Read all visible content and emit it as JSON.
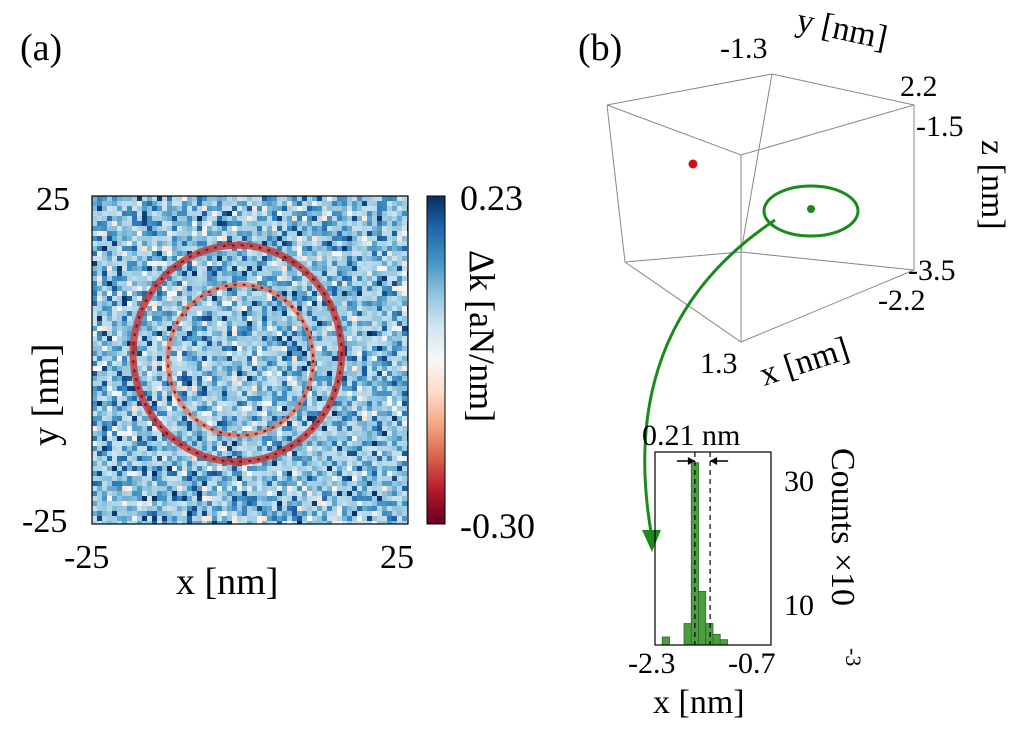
{
  "panels": {
    "a": {
      "label": "(a)"
    },
    "b": {
      "label": "(b)"
    }
  },
  "chart_data": [
    {
      "type": "heatmap",
      "panel": "a",
      "xlabel": "x [nm]",
      "ylabel": "y [nm]",
      "xlim": [
        -25,
        25
      ],
      "ylim": [
        -25,
        25
      ],
      "x_ticks": [
        "-25",
        "25"
      ],
      "y_ticks": [
        "25",
        "-25"
      ],
      "colorbar": {
        "label": "Δk [aN/nm]",
        "min": -0.3,
        "max": 0.23,
        "min_label": "-0.30",
        "max_label": "0.23",
        "colors": [
          "#67001f",
          "#b2182b",
          "#d6604d",
          "#f4a582",
          "#fddbc7",
          "#f7f7f7",
          "#d1e5f0",
          "#92c5de",
          "#4393c3",
          "#2166ac",
          "#053061"
        ]
      },
      "features": {
        "rings": [
          {
            "center": [
              -2,
              1
            ],
            "radius": 16.5,
            "value": -0.22
          },
          {
            "center": [
              -1.5,
              0
            ],
            "radius": 11.5,
            "value": -0.17
          }
        ],
        "background": "noise"
      }
    },
    {
      "type": "scatter",
      "panel": "b",
      "projection": "3d",
      "xlabel": "x [nm]",
      "ylabel": "y [nm]",
      "zlabel": "z [nm]",
      "x_ticks": [
        "1.3",
        "-2.2"
      ],
      "y_ticks": [
        "-1.3",
        "2.2"
      ],
      "z_ticks": [
        "-1.5",
        "-3.5"
      ],
      "points": [
        {
          "x": -0.2,
          "y": -1.1,
          "z": -2.2,
          "color": "#cc1111"
        },
        {
          "x": -1.2,
          "y": 1.3,
          "z": -2.5,
          "color": "#1a8a1a"
        }
      ],
      "highlight_color": "#1a8a1a"
    },
    {
      "type": "bar",
      "panel": "b-inset",
      "xlabel": "x [nm]",
      "ylabel": "Counts ×10",
      "ylabel_exponent": "-3",
      "xlim": [
        -2.3,
        -0.7
      ],
      "ylim": [
        0,
        36
      ],
      "x_ticks": [
        "-2.3",
        "-0.7"
      ],
      "y_ticks": [
        "30",
        "10"
      ],
      "bin_edges": [
        -2.2,
        -2.1,
        -2.0,
        -1.9,
        -1.8,
        -1.7,
        -1.6,
        -1.5,
        -1.4,
        -1.3,
        -1.2
      ],
      "values": [
        1.5,
        0,
        0,
        4,
        34,
        10,
        4,
        2,
        1,
        0
      ],
      "bar_color": "#4a9e3f",
      "width_annotation": {
        "label": "0.21 nm",
        "from": -1.75,
        "to": -1.54
      }
    }
  ]
}
